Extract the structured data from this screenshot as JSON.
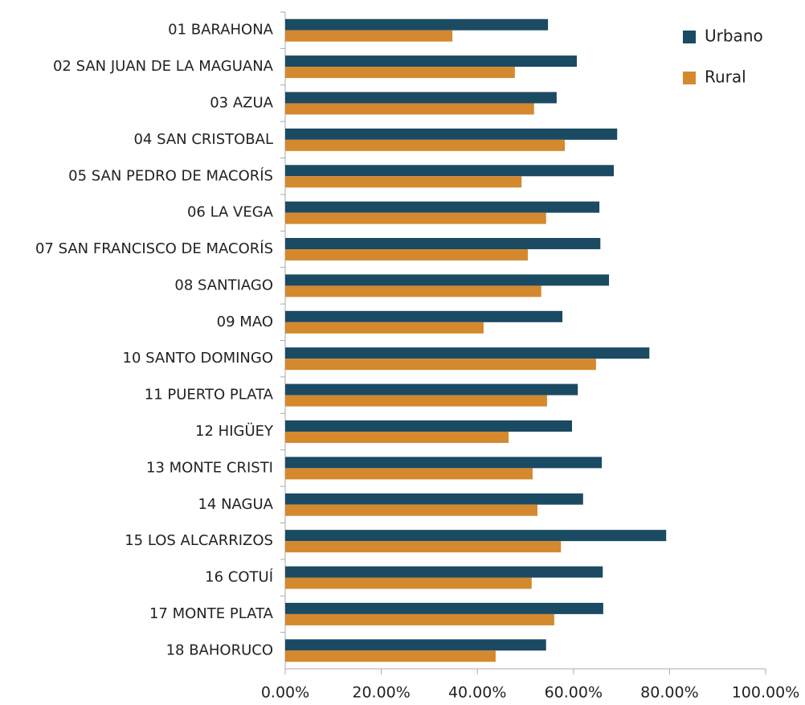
{
  "chart_data": {
    "type": "bar",
    "orientation": "horizontal",
    "categories": [
      "01 BARAHONA",
      "02 SAN JUAN DE LA MAGUANA",
      "03 AZUA",
      "04 SAN CRISTOBAL",
      "05 SAN PEDRO DE MACORÍS",
      "06 LA VEGA",
      "07 SAN FRANCISCO DE MACORÍS",
      "08 SANTIAGO",
      "09 MAO",
      "10 SANTO DOMINGO",
      "11 PUERTO PLATA",
      "12 HIGÜEY",
      "13 MONTE CRISTI",
      "14 NAGUA",
      "15 LOS ALCARRIZOS",
      "16 COTUÍ",
      "17 MONTE PLATA",
      "18 BAHORUCO"
    ],
    "series": [
      {
        "name": "Urbano",
        "color": "#1b4a63",
        "values": [
          54.7,
          60.7,
          56.5,
          69.1,
          68.4,
          65.4,
          65.6,
          67.4,
          57.7,
          75.8,
          60.9,
          59.7,
          65.9,
          62.0,
          79.3,
          66.1,
          66.2,
          54.3
        ]
      },
      {
        "name": "Rural",
        "color": "#d4892e",
        "values": [
          34.8,
          47.8,
          51.8,
          58.2,
          49.2,
          54.3,
          50.5,
          53.3,
          41.3,
          64.7,
          54.5,
          46.5,
          51.5,
          52.5,
          57.4,
          51.3,
          56.0,
          43.8
        ]
      }
    ],
    "xlim": [
      0,
      100
    ],
    "xticks": [
      {
        "value": 0,
        "label": "0.00%"
      },
      {
        "value": 20,
        "label": "20.00%"
      },
      {
        "value": 40,
        "label": "40.00%"
      },
      {
        "value": 60,
        "label": "60.00%"
      },
      {
        "value": 80,
        "label": "80.00%"
      },
      {
        "value": 100,
        "label": "100.00%"
      }
    ],
    "legend": "top-right"
  }
}
